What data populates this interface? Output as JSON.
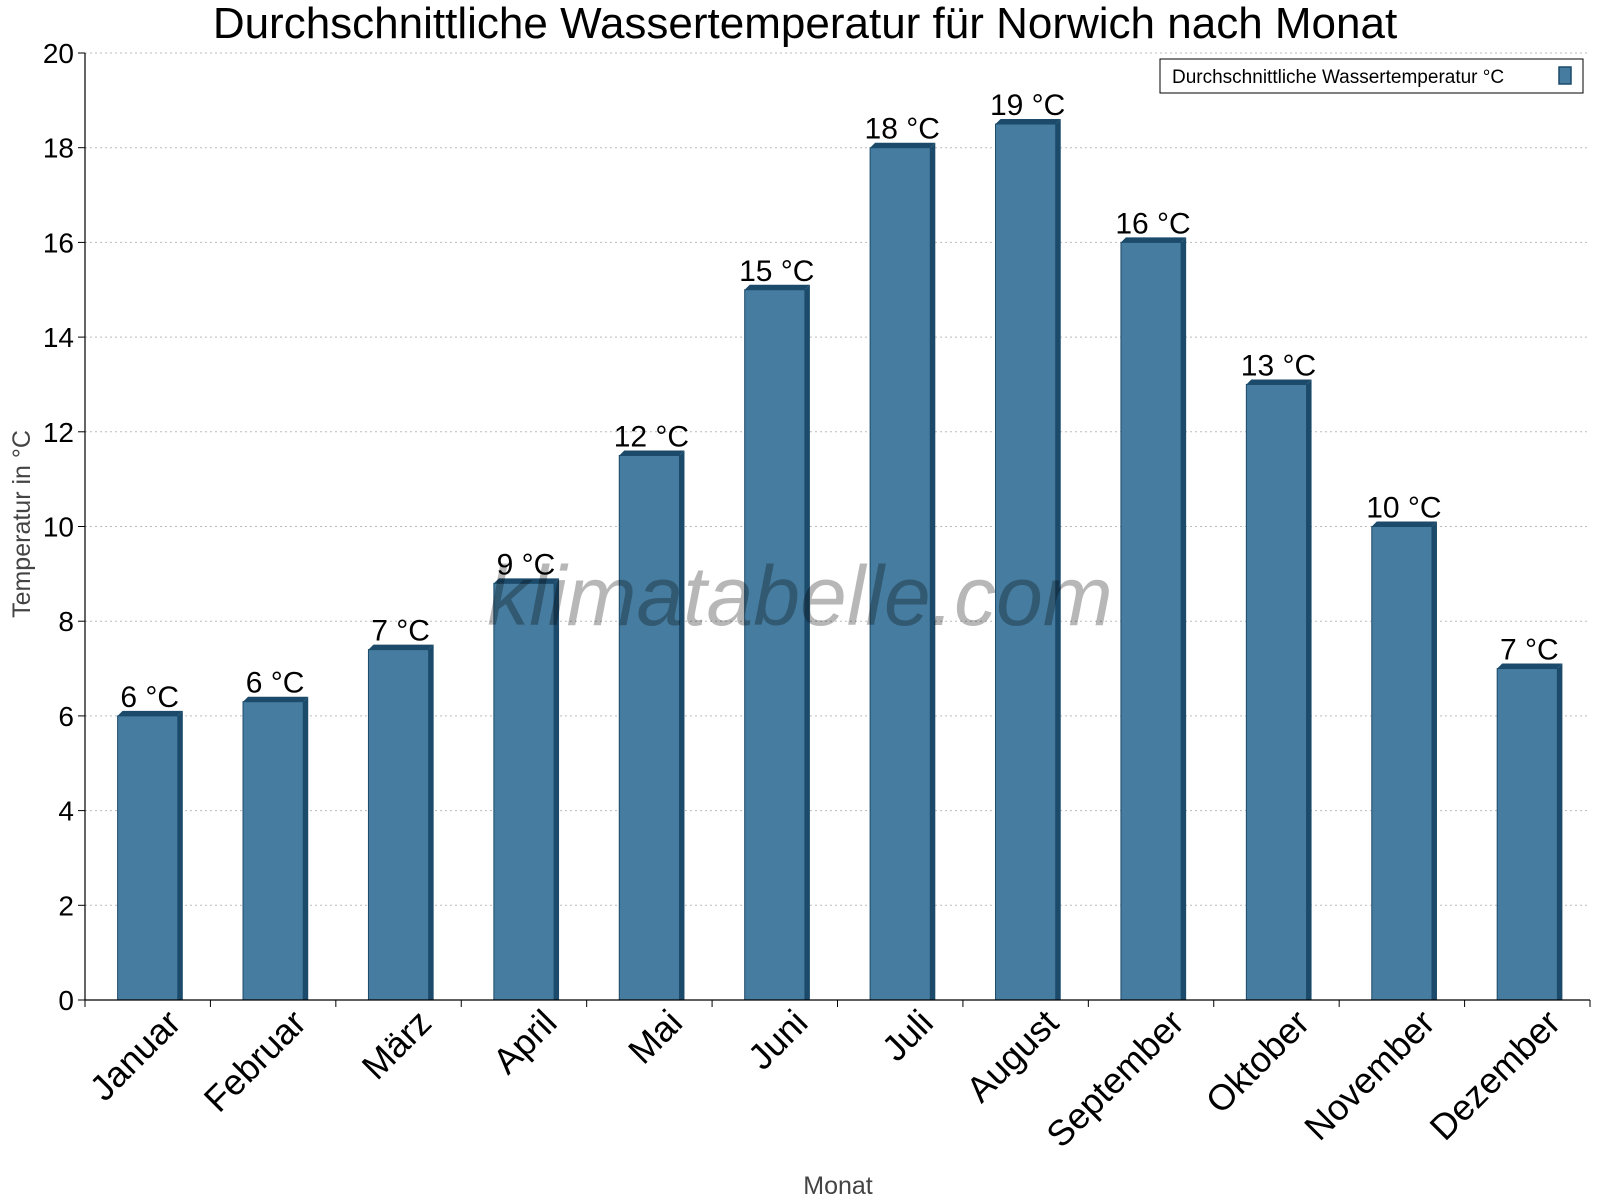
{
  "chart_data": {
    "type": "bar",
    "title": "Durchschnittliche Wassertemperatur für Norwich nach Monat",
    "xlabel": "Monat",
    "ylabel": "Temperatur in °C",
    "ylim": [
      0,
      20
    ],
    "yticks": [
      0,
      2,
      4,
      6,
      8,
      10,
      12,
      14,
      16,
      18,
      20
    ],
    "grid": true,
    "legend_position": "top-right",
    "categories": [
      "Januar",
      "Februar",
      "März",
      "April",
      "Mai",
      "Juni",
      "Juli",
      "August",
      "September",
      "Oktober",
      "November",
      "Dezember"
    ],
    "series": [
      {
        "name": "Durchschnittliche Wassertemperatur °C",
        "values": [
          6.0,
          6.3,
          7.4,
          8.8,
          11.5,
          15.0,
          18.0,
          18.5,
          16.0,
          13.0,
          10.0,
          7.0
        ],
        "labels": [
          "6 °C",
          "6 °C",
          "7 °C",
          "9 °C",
          "12 °C",
          "15 °C",
          "18 °C",
          "19 °C",
          "16 °C",
          "13 °C",
          "10 °C",
          "7 °C"
        ],
        "color": "#467c9f",
        "edge_color": "#1c4a6a"
      }
    ],
    "watermark": "klimatabelle.com"
  }
}
